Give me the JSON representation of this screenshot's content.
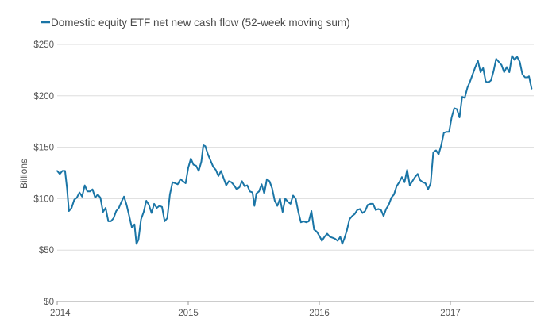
{
  "chart_data": {
    "type": "line",
    "title": "",
    "xlabel": "",
    "ylabel": "Billions",
    "ylim": [
      0,
      250
    ],
    "grid": true,
    "legend_position": "top-left",
    "y_ticks": [
      {
        "value": 0,
        "label": "$0"
      },
      {
        "value": 50,
        "label": "$50"
      },
      {
        "value": 100,
        "label": "$100"
      },
      {
        "value": 150,
        "label": "$150"
      },
      {
        "value": 200,
        "label": "$200"
      },
      {
        "value": 250,
        "label": "$250"
      }
    ],
    "x_ticks": [
      {
        "value": 2014,
        "label": "2014"
      },
      {
        "value": 2015,
        "label": "2015"
      },
      {
        "value": 2016,
        "label": "2016"
      },
      {
        "value": 2017,
        "label": "2017"
      }
    ],
    "xlim": [
      2014,
      2017.62
    ],
    "series": [
      {
        "name": "Domestic equity ETF net new cash flow (52-week moving sum)",
        "color": "#1a75a6",
        "points": [
          [
            2014.0,
            127
          ],
          [
            2014.02,
            124
          ],
          [
            2014.04,
            127
          ],
          [
            2014.06,
            127
          ],
          [
            2014.075,
            110
          ],
          [
            2014.09,
            88
          ],
          [
            2014.11,
            91
          ],
          [
            2014.13,
            99
          ],
          [
            2014.15,
            101
          ],
          [
            2014.17,
            106
          ],
          [
            2014.19,
            102
          ],
          [
            2014.21,
            113
          ],
          [
            2014.23,
            107
          ],
          [
            2014.25,
            107
          ],
          [
            2014.27,
            109
          ],
          [
            2014.29,
            101
          ],
          [
            2014.31,
            104
          ],
          [
            2014.33,
            101
          ],
          [
            2014.35,
            87
          ],
          [
            2014.37,
            91
          ],
          [
            2014.39,
            78
          ],
          [
            2014.41,
            78
          ],
          [
            2014.43,
            81
          ],
          [
            2014.45,
            88
          ],
          [
            2014.47,
            91
          ],
          [
            2014.49,
            97
          ],
          [
            2014.51,
            102
          ],
          [
            2014.53,
            94
          ],
          [
            2014.55,
            83
          ],
          [
            2014.57,
            72
          ],
          [
            2014.59,
            75
          ],
          [
            2014.605,
            56
          ],
          [
            2014.62,
            60
          ],
          [
            2014.64,
            80
          ],
          [
            2014.66,
            87
          ],
          [
            2014.68,
            98
          ],
          [
            2014.7,
            94
          ],
          [
            2014.72,
            86
          ],
          [
            2014.74,
            95
          ],
          [
            2014.76,
            91
          ],
          [
            2014.78,
            93
          ],
          [
            2014.8,
            92
          ],
          [
            2014.82,
            78
          ],
          [
            2014.84,
            81
          ],
          [
            2014.86,
            104
          ],
          [
            2014.88,
            116
          ],
          [
            2014.9,
            115
          ],
          [
            2014.92,
            114
          ],
          [
            2014.94,
            119
          ],
          [
            2014.96,
            117
          ],
          [
            2014.98,
            115
          ],
          [
            2015.0,
            130
          ],
          [
            2015.02,
            139
          ],
          [
            2015.04,
            133
          ],
          [
            2015.06,
            132
          ],
          [
            2015.08,
            127
          ],
          [
            2015.1,
            136
          ],
          [
            2015.115,
            152
          ],
          [
            2015.13,
            151
          ],
          [
            2015.15,
            143
          ],
          [
            2015.17,
            137
          ],
          [
            2015.19,
            131
          ],
          [
            2015.21,
            128
          ],
          [
            2015.23,
            122
          ],
          [
            2015.25,
            127
          ],
          [
            2015.27,
            120
          ],
          [
            2015.29,
            113
          ],
          [
            2015.31,
            117
          ],
          [
            2015.33,
            116
          ],
          [
            2015.35,
            113
          ],
          [
            2015.37,
            109
          ],
          [
            2015.39,
            111
          ],
          [
            2015.41,
            117
          ],
          [
            2015.43,
            112
          ],
          [
            2015.45,
            113
          ],
          [
            2015.47,
            107
          ],
          [
            2015.49,
            106
          ],
          [
            2015.505,
            93
          ],
          [
            2015.52,
            105
          ],
          [
            2015.54,
            107
          ],
          [
            2015.56,
            114
          ],
          [
            2015.58,
            105
          ],
          [
            2015.6,
            119
          ],
          [
            2015.62,
            117
          ],
          [
            2015.64,
            110
          ],
          [
            2015.66,
            98
          ],
          [
            2015.68,
            93
          ],
          [
            2015.7,
            100
          ],
          [
            2015.72,
            87
          ],
          [
            2015.74,
            100
          ],
          [
            2015.76,
            97
          ],
          [
            2015.78,
            95
          ],
          [
            2015.8,
            103
          ],
          [
            2015.82,
            100
          ],
          [
            2015.84,
            87
          ],
          [
            2015.86,
            77
          ],
          [
            2015.88,
            78
          ],
          [
            2015.9,
            77
          ],
          [
            2015.92,
            78
          ],
          [
            2015.94,
            88
          ],
          [
            2015.96,
            70
          ],
          [
            2015.98,
            68
          ],
          [
            2016.0,
            64
          ],
          [
            2016.02,
            59
          ],
          [
            2016.04,
            63
          ],
          [
            2016.06,
            66
          ],
          [
            2016.08,
            63
          ],
          [
            2016.1,
            62
          ],
          [
            2016.12,
            61
          ],
          [
            2016.14,
            59
          ],
          [
            2016.16,
            63
          ],
          [
            2016.175,
            56
          ],
          [
            2016.19,
            61
          ],
          [
            2016.21,
            69
          ],
          [
            2016.23,
            80
          ],
          [
            2016.25,
            83
          ],
          [
            2016.27,
            85
          ],
          [
            2016.29,
            89
          ],
          [
            2016.31,
            90
          ],
          [
            2016.33,
            86
          ],
          [
            2016.35,
            88
          ],
          [
            2016.37,
            94
          ],
          [
            2016.39,
            95
          ],
          [
            2016.41,
            95
          ],
          [
            2016.43,
            89
          ],
          [
            2016.45,
            90
          ],
          [
            2016.47,
            89
          ],
          [
            2016.49,
            83
          ],
          [
            2016.51,
            90
          ],
          [
            2016.53,
            94
          ],
          [
            2016.55,
            101
          ],
          [
            2016.57,
            104
          ],
          [
            2016.59,
            112
          ],
          [
            2016.61,
            116
          ],
          [
            2016.63,
            121
          ],
          [
            2016.65,
            116
          ],
          [
            2016.67,
            128
          ],
          [
            2016.69,
            113
          ],
          [
            2016.71,
            117
          ],
          [
            2016.73,
            121
          ],
          [
            2016.75,
            124
          ],
          [
            2016.77,
            118
          ],
          [
            2016.79,
            116
          ],
          [
            2016.81,
            115
          ],
          [
            2016.83,
            109
          ],
          [
            2016.85,
            115
          ],
          [
            2016.87,
            145
          ],
          [
            2016.89,
            147
          ],
          [
            2016.91,
            143
          ],
          [
            2016.93,
            152
          ],
          [
            2016.95,
            164
          ],
          [
            2016.97,
            165
          ],
          [
            2016.99,
            165
          ],
          [
            2017.01,
            179
          ],
          [
            2017.03,
            188
          ],
          [
            2017.05,
            187
          ],
          [
            2017.07,
            179
          ],
          [
            2017.09,
            199
          ],
          [
            2017.11,
            198
          ],
          [
            2017.13,
            208
          ],
          [
            2017.15,
            214
          ],
          [
            2017.17,
            221
          ],
          [
            2017.19,
            228
          ],
          [
            2017.21,
            234
          ],
          [
            2017.23,
            223
          ],
          [
            2017.25,
            227
          ],
          [
            2017.27,
            214
          ],
          [
            2017.29,
            213
          ],
          [
            2017.31,
            215
          ],
          [
            2017.33,
            224
          ],
          [
            2017.35,
            236
          ],
          [
            2017.37,
            233
          ],
          [
            2017.39,
            230
          ],
          [
            2017.41,
            223
          ],
          [
            2017.43,
            228
          ],
          [
            2017.45,
            223
          ],
          [
            2017.47,
            239
          ],
          [
            2017.49,
            235
          ],
          [
            2017.51,
            238
          ],
          [
            2017.53,
            233
          ],
          [
            2017.55,
            221
          ],
          [
            2017.57,
            218
          ],
          [
            2017.59,
            218
          ],
          [
            2017.6,
            219
          ],
          [
            2017.62,
            207
          ]
        ]
      }
    ]
  }
}
